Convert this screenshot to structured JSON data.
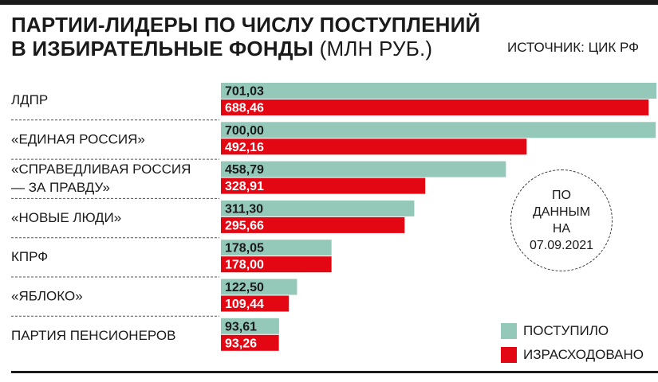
{
  "title": {
    "line1": "ПАРТИИ-ЛИДЕРЫ ПО ЧИСЛУ ПОСТУПЛЕНИЙ",
    "line2_bold": "В ИЗБИРАТЕЛЬНЫЕ ФОНДЫ",
    "line2_unit": "(МЛН РУБ.)"
  },
  "source": "ИСТОЧНИК: ЦИК РФ",
  "note": [
    "ПО",
    "ДАННЫМ",
    "НА",
    "07.09.2021"
  ],
  "colors": {
    "received": "#94c8b9",
    "spent": "#e30613",
    "text": "#1a1a1a"
  },
  "chart_data": {
    "type": "bar",
    "orientation": "horizontal",
    "categories": [
      [
        "ЛДПР"
      ],
      [
        "«ЕДИНАЯ РОССИЯ»"
      ],
      [
        "«СПРАВЕДЛИВАЯ РОССИЯ",
        "— ЗА ПРАВДУ»"
      ],
      [
        "«НОВЫЕ ЛЮДИ»"
      ],
      [
        "КПРФ"
      ],
      [
        "«ЯБЛОКО»"
      ],
      [
        "ПАРТИЯ ПЕНСИОНЕРОВ"
      ]
    ],
    "series": [
      {
        "name": "ПОСТУПИЛО",
        "values": [
          701.03,
          700.0,
          458.79,
          311.3,
          178.05,
          122.5,
          93.61
        ],
        "labels": [
          "701,03",
          "700,00",
          "458,79",
          "311,30",
          "178,05",
          "122,50",
          "93,61"
        ]
      },
      {
        "name": "ИЗРАСХОДОВАНО",
        "values": [
          688.46,
          492.16,
          328.91,
          295.66,
          178.0,
          109.44,
          93.26
        ],
        "labels": [
          "688,46",
          "492,16",
          "328,91",
          "295,66",
          "178,00",
          "109,44",
          "93,26"
        ]
      }
    ],
    "xlim": [
      0,
      701.03
    ],
    "grid": false,
    "legend": "bottom-right"
  }
}
